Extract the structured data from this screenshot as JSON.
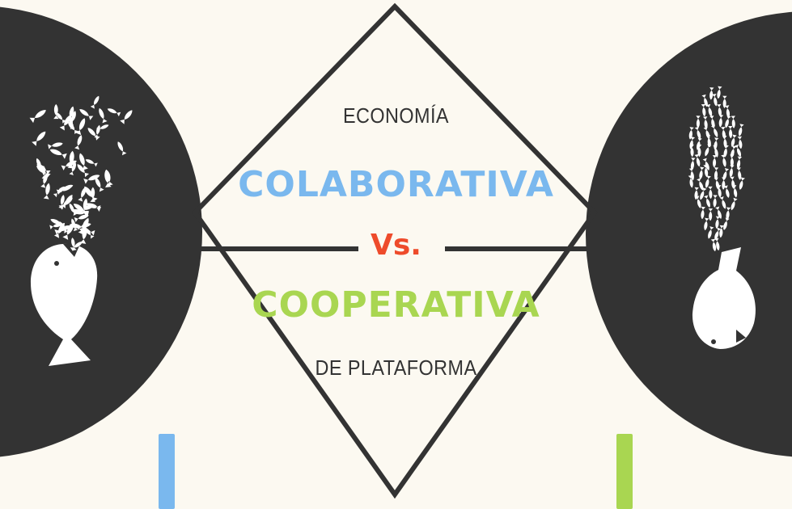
{
  "title": {
    "top": "ECONOMÍA",
    "word1": "COLABORATIVA",
    "versus": "Vs.",
    "word2": "COOPERATIVA",
    "bottom": "DE PLATAFORMA"
  },
  "colors": {
    "background": "#fcf9f1",
    "dark": "#333333",
    "blue": "#7ab8ee",
    "green": "#a9d651",
    "red": "#ee4b2b",
    "fish": "#ffffff"
  },
  "illustrations": {
    "left": "big-fish-spitting-out-small-fish-icon",
    "right": "school-of-small-fish-entering-big-fish-icon"
  }
}
